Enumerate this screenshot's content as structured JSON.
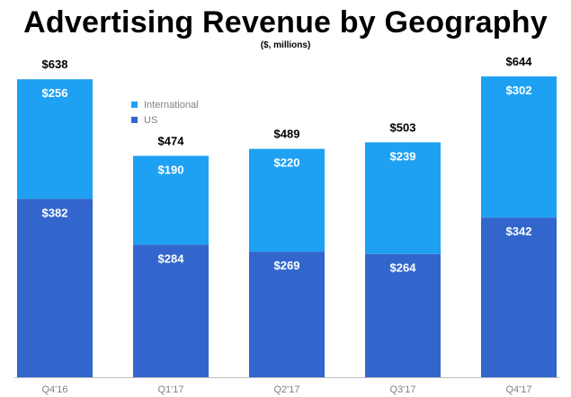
{
  "chart_data": {
    "type": "bar",
    "stacked": true,
    "title": "Advertising Revenue by Geography",
    "subtitle": "($, millions)",
    "categories": [
      "Q4'16",
      "Q1'17",
      "Q2'17",
      "Q3'17",
      "Q4'17"
    ],
    "series": [
      {
        "name": "US",
        "values": [
          382,
          284,
          269,
          264,
          342
        ],
        "color": "#3366cc"
      },
      {
        "name": "International",
        "values": [
          256,
          190,
          220,
          239,
          302
        ],
        "color": "#1ea1f2"
      }
    ],
    "totals": [
      638,
      474,
      489,
      503,
      644
    ],
    "value_prefix": "$",
    "legend": [
      "International",
      "US"
    ],
    "legend_position": "top-left",
    "ylim": [
      0,
      700
    ],
    "grid": false
  }
}
